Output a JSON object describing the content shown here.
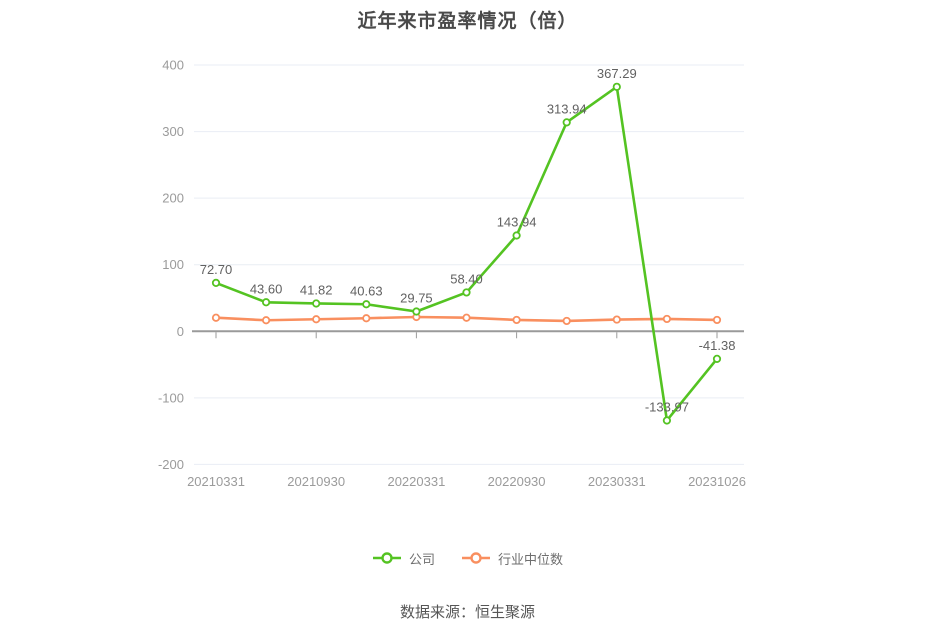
{
  "chart_data": {
    "type": "line",
    "title": "近年来市盈率情况（倍）",
    "source": "数据来源：恒生聚源",
    "x_count": 11,
    "x_tick_labels": [
      "20210331",
      "20210930",
      "20220331",
      "20220930",
      "20230331",
      "20231026"
    ],
    "x_tick_indices": [
      0,
      2,
      4,
      6,
      8,
      10
    ],
    "y_tick_labels": [
      "400",
      "300",
      "200",
      "100",
      "0",
      "-100",
      "-200"
    ],
    "ylim": [
      -200,
      400
    ],
    "grid": true,
    "legend_position": "bottom",
    "series": [
      {
        "name": "公司",
        "color": "#54c322",
        "values": [
          72.7,
          43.6,
          41.82,
          40.63,
          29.75,
          58.4,
          143.94,
          313.94,
          367.29,
          -133.97,
          -41.38
        ],
        "point_labels": [
          "72.70",
          "43.60",
          "41.82",
          "40.63",
          "29.75",
          "58.40",
          "143.94",
          "313.94",
          "367.29",
          "-133.97",
          "-41.38"
        ]
      },
      {
        "name": "行业中位数",
        "color": "#f98f5f",
        "values_estimated": true,
        "values": [
          20.4,
          16.6,
          18.1,
          19.6,
          21.5,
          20.4,
          17.1,
          15.6,
          17.6,
          18.6,
          17.1
        ],
        "point_labels": []
      }
    ],
    "colors": {
      "grid_line": "#e9edf4",
      "axis_line": "#9a9a9a",
      "axis_text": "#9b9b9b",
      "data_label_text": "#616161",
      "marker_fill": "#ffffff"
    }
  }
}
